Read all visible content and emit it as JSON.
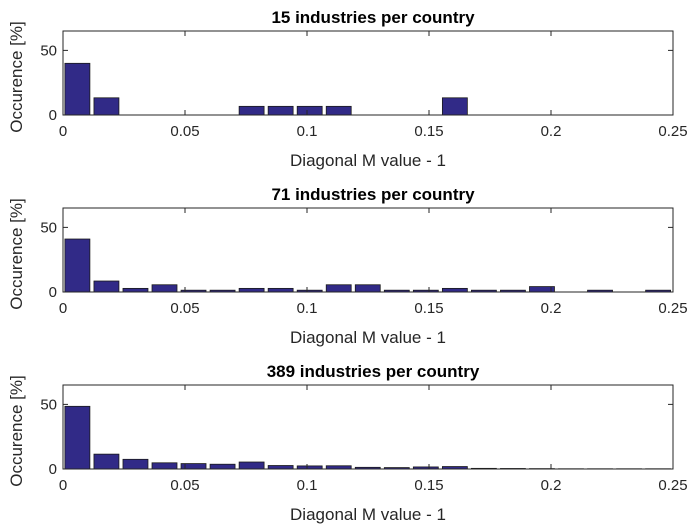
{
  "chart_data": [
    {
      "type": "bar",
      "title": "15 industries per country",
      "xlabel": "Diagonal M value - 1",
      "ylabel": "Occurence [%]",
      "xlim": [
        0,
        0.25
      ],
      "ylim": [
        0,
        65
      ],
      "xticks": [
        "0",
        "0.05",
        "0.1",
        "0.15",
        "0.2",
        "0.25"
      ],
      "yticks": [
        "0",
        "50"
      ],
      "bin_width": 0.0119,
      "x": [
        0.0059,
        0.0178,
        0.0297,
        0.0416,
        0.0535,
        0.0654,
        0.0773,
        0.0892,
        0.1011,
        0.113,
        0.1249,
        0.1368,
        0.1487,
        0.1606,
        0.1725,
        0.1844,
        0.1963,
        0.2082,
        0.2201,
        0.232,
        0.2439
      ],
      "values": [
        40,
        13.3,
        0,
        0,
        0,
        0,
        6.7,
        6.7,
        6.7,
        6.7,
        0,
        0,
        0,
        13.3,
        0,
        0,
        0,
        0,
        0,
        0,
        0
      ],
      "color": "#312a87"
    },
    {
      "type": "bar",
      "title": "71 industries per country",
      "xlabel": "Diagonal M value - 1",
      "ylabel": "Occurence [%]",
      "xlim": [
        0,
        0.25
      ],
      "ylim": [
        0,
        65
      ],
      "xticks": [
        "0",
        "0.05",
        "0.1",
        "0.15",
        "0.2",
        "0.25"
      ],
      "yticks": [
        "0",
        "50"
      ],
      "bin_width": 0.0119,
      "x": [
        0.0059,
        0.0178,
        0.0297,
        0.0416,
        0.0535,
        0.0654,
        0.0773,
        0.0892,
        0.1011,
        0.113,
        0.1249,
        0.1368,
        0.1487,
        0.1606,
        0.1725,
        0.1844,
        0.1963,
        0.2082,
        0.2201,
        0.232,
        0.2439
      ],
      "values": [
        41,
        8.5,
        2.8,
        5.6,
        1.4,
        1.4,
        2.8,
        2.8,
        1.4,
        5.6,
        5.6,
        1.4,
        1.4,
        2.8,
        1.4,
        1.4,
        4.2,
        0,
        1.4,
        0,
        1.4
      ],
      "color": "#312a87"
    },
    {
      "type": "bar",
      "title": "389 industries per country",
      "xlabel": "Diagonal M value - 1",
      "ylabel": "Occurence [%]",
      "xlim": [
        0,
        0.25
      ],
      "ylim": [
        0,
        65
      ],
      "xticks": [
        "0",
        "0.05",
        "0.1",
        "0.15",
        "0.2",
        "0.25"
      ],
      "yticks": [
        "0",
        "50"
      ],
      "bin_width": 0.0119,
      "x": [
        0.0059,
        0.0178,
        0.0297,
        0.0416,
        0.0535,
        0.0654,
        0.0773,
        0.0892,
        0.1011,
        0.113,
        0.1249,
        0.1368,
        0.1487,
        0.1606,
        0.1725,
        0.1844,
        0.1963,
        0.2082,
        0.2201,
        0.232,
        0.2439
      ],
      "values": [
        48.5,
        11.5,
        7.5,
        4.8,
        4.2,
        3.7,
        5.4,
        2.7,
        2.4,
        2.5,
        1.3,
        1.1,
        1.6,
        1.9,
        0.5,
        0.4,
        0.3,
        0.2,
        0.2,
        0.2,
        0.2
      ],
      "color": "#312a87"
    }
  ]
}
